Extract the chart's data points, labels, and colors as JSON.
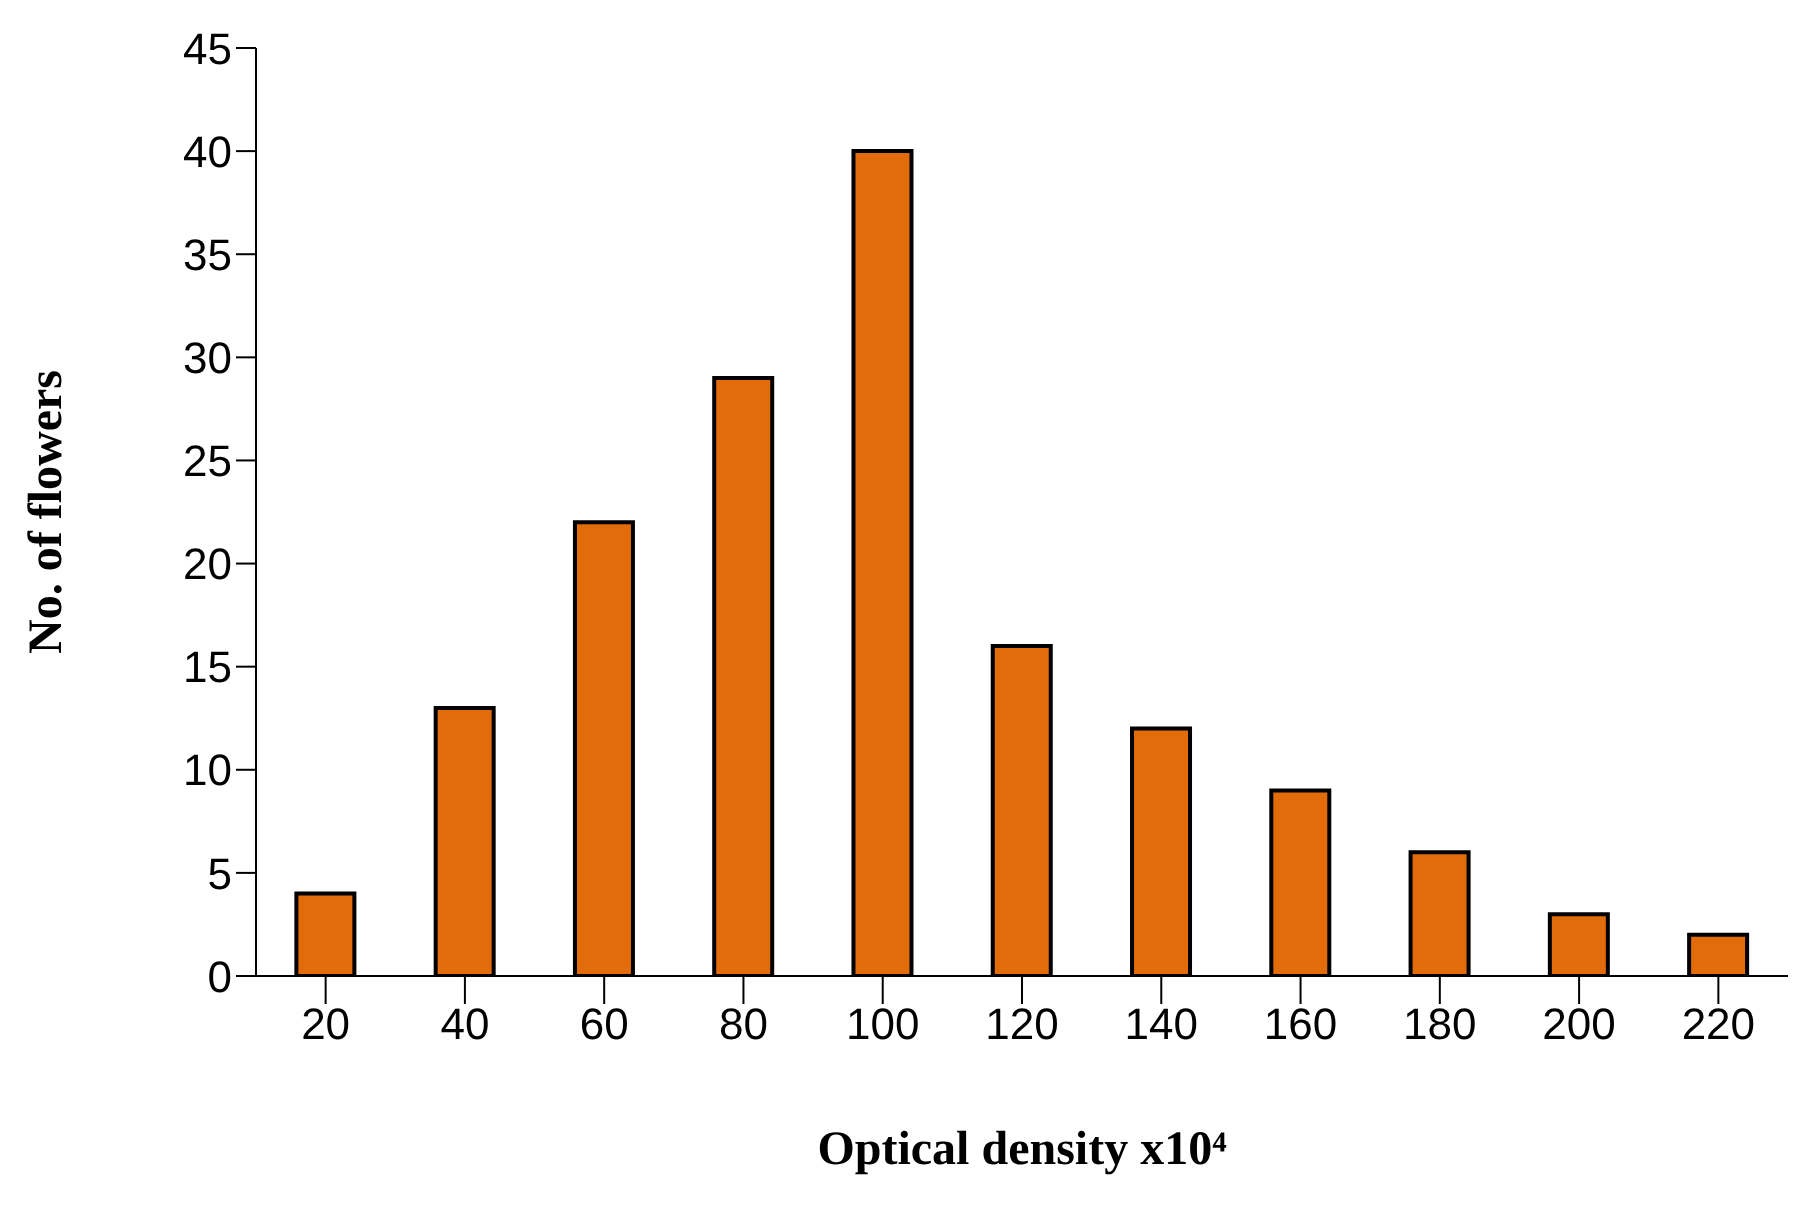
{
  "chart_data": {
    "type": "bar",
    "xlabel": "Optical density x10⁴",
    "ylabel": "No. of flowers",
    "categories": [
      "20",
      "40",
      "60",
      "80",
      "100",
      "120",
      "140",
      "160",
      "180",
      "200",
      "220"
    ],
    "values": [
      4,
      13,
      22,
      29,
      40,
      16,
      12,
      9,
      6,
      3,
      2
    ],
    "color": "#e36c0a",
    "ylim": [
      0,
      45
    ],
    "yticks": [
      0,
      5,
      10,
      15,
      20,
      25,
      30,
      35,
      40,
      45
    ],
    "grid": false
  }
}
